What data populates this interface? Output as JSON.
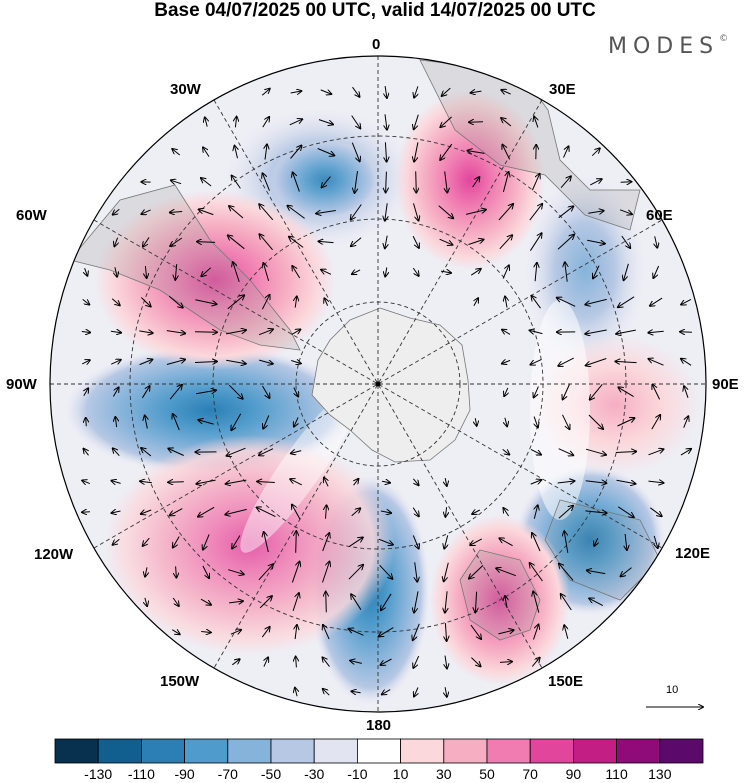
{
  "title": "Base 04/07/2025 00 UTC, valid 14/07/2025 00 UTC",
  "brand": {
    "name": "MODES",
    "mark": "©"
  },
  "longitude_labels": {
    "n0": "0",
    "n30e": "30E",
    "n60e": "60E",
    "n90e": "90E",
    "n120e": "120E",
    "n150e": "150E",
    "n180": "180",
    "n150w": "150W",
    "n120w": "120W",
    "n90w": "90W",
    "n60w": "60W",
    "n30w": "30W"
  },
  "reference_vector": {
    "label": "10"
  },
  "colorbar": {
    "colors": [
      "#08304f",
      "#115f8f",
      "#2b7fb5",
      "#4f9bcb",
      "#86b3da",
      "#b6c8e4",
      "#e2e4f1",
      "#ffffff",
      "#fbd8dc",
      "#f6aec3",
      "#f07cb2",
      "#e2459c",
      "#c21e84",
      "#8f0b7a",
      "#5b0a6b"
    ],
    "ticks": [
      "-130",
      "-110",
      "-90",
      "-70",
      "-50",
      "-30",
      "-10",
      "10",
      "30",
      "50",
      "70",
      "90",
      "110",
      "130"
    ]
  },
  "icons": {
    "brand_mark": "copyright-mark",
    "vector_arrow": "arrow-right-icon"
  }
}
